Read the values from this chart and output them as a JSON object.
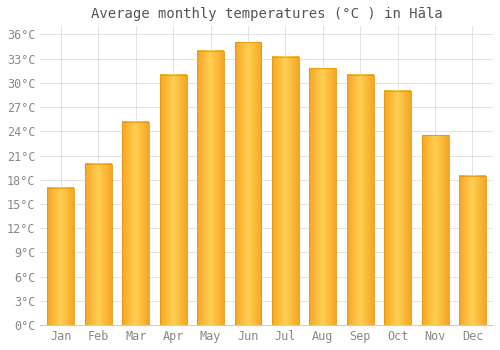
{
  "title": "Average monthly temperatures (°C ) in Hāla",
  "months": [
    "Jan",
    "Feb",
    "Mar",
    "Apr",
    "May",
    "Jun",
    "Jul",
    "Aug",
    "Sep",
    "Oct",
    "Nov",
    "Dec"
  ],
  "values": [
    17.0,
    20.0,
    25.2,
    31.0,
    34.0,
    35.0,
    33.2,
    31.8,
    31.0,
    29.0,
    23.5,
    18.5
  ],
  "bar_color_left": "#F5A623",
  "bar_color_center": "#FFD055",
  "bar_color_right": "#F5A623",
  "background_color": "#ffffff",
  "grid_color": "#dddddd",
  "ylim": [
    0,
    37
  ],
  "yticks": [
    0,
    3,
    6,
    9,
    12,
    15,
    18,
    21,
    24,
    27,
    30,
    33,
    36
  ],
  "title_fontsize": 10,
  "tick_fontsize": 8.5,
  "font_family": "monospace"
}
